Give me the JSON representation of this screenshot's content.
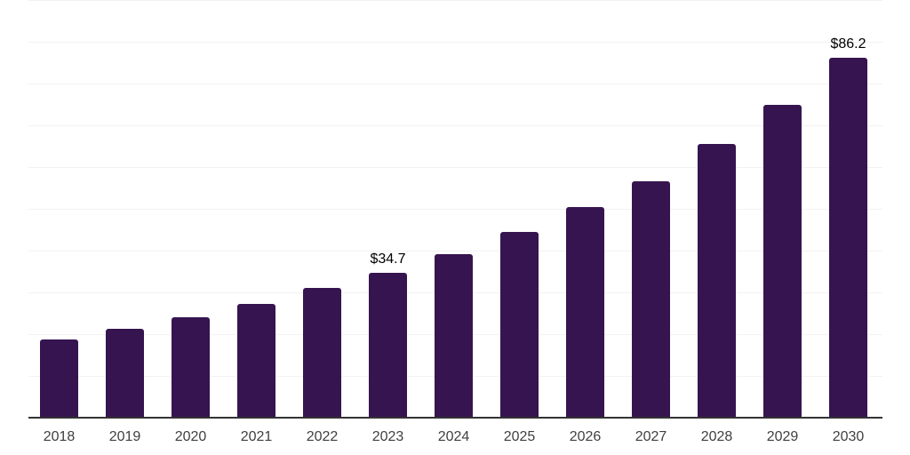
{
  "chart_data": {
    "type": "bar",
    "title": "",
    "xlabel": "",
    "ylabel": "",
    "categories": [
      "2018",
      "2019",
      "2020",
      "2021",
      "2022",
      "2023",
      "2024",
      "2025",
      "2026",
      "2027",
      "2028",
      "2029",
      "2030"
    ],
    "values": [
      18.8,
      21.3,
      24.1,
      27.2,
      31.0,
      34.7,
      39.1,
      44.5,
      50.4,
      56.7,
      65.6,
      75.0,
      86.2
    ],
    "data_labels": [
      {
        "index": 5,
        "text": "$34.7"
      },
      {
        "index": 12,
        "text": "$86.2"
      }
    ],
    "ylim": [
      0,
      100
    ],
    "grid_step": 10,
    "grid": "horizontal",
    "legend": "none",
    "colors": {
      "bar": "#361450",
      "gridline": "#f2f2f2",
      "axis_line": "#333333",
      "tick_label": "#404040",
      "data_label": "#000000",
      "background": "#ffffff"
    }
  }
}
